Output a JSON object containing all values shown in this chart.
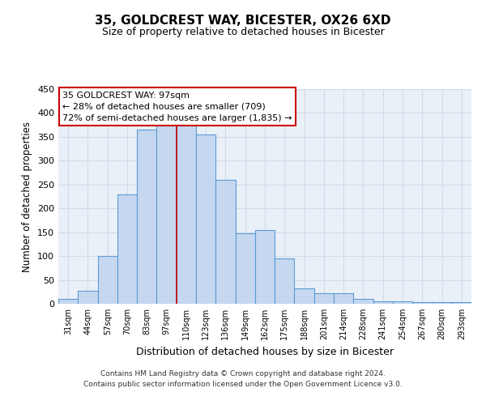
{
  "title": "35, GOLDCREST WAY, BICESTER, OX26 6XD",
  "subtitle": "Size of property relative to detached houses in Bicester",
  "xlabel": "Distribution of detached houses by size in Bicester",
  "ylabel": "Number of detached properties",
  "bar_labels": [
    "31sqm",
    "44sqm",
    "57sqm",
    "70sqm",
    "83sqm",
    "97sqm",
    "110sqm",
    "123sqm",
    "136sqm",
    "149sqm",
    "162sqm",
    "175sqm",
    "188sqm",
    "201sqm",
    "214sqm",
    "228sqm",
    "241sqm",
    "254sqm",
    "267sqm",
    "280sqm",
    "293sqm"
  ],
  "bar_heights": [
    10,
    27,
    100,
    230,
    365,
    375,
    375,
    355,
    260,
    147,
    155,
    95,
    33,
    22,
    22,
    10,
    5,
    5,
    3,
    3,
    3
  ],
  "bar_color": "#c5d8f0",
  "bar_edge_color": "#5b9bd5",
  "bar_edge_width": 0.8,
  "vline_x_idx": 5.5,
  "vline_color": "#cc0000",
  "ylim": [
    0,
    450
  ],
  "yticks": [
    0,
    50,
    100,
    150,
    200,
    250,
    300,
    350,
    400,
    450
  ],
  "grid_color": "#d0dce8",
  "annotation_title": "35 GOLDCREST WAY: 97sqm",
  "annotation_line2": "← 28% of detached houses are smaller (709)",
  "annotation_line3": "72% of semi-detached houses are larger (1,835) →",
  "annotation_box_color": "#ffffff",
  "annotation_box_edge_color": "#cc0000",
  "footer_line1": "Contains HM Land Registry data © Crown copyright and database right 2024.",
  "footer_line2": "Contains public sector information licensed under the Open Government Licence v3.0.",
  "background_color": "#eaf0f8",
  "fig_background_color": "#ffffff"
}
